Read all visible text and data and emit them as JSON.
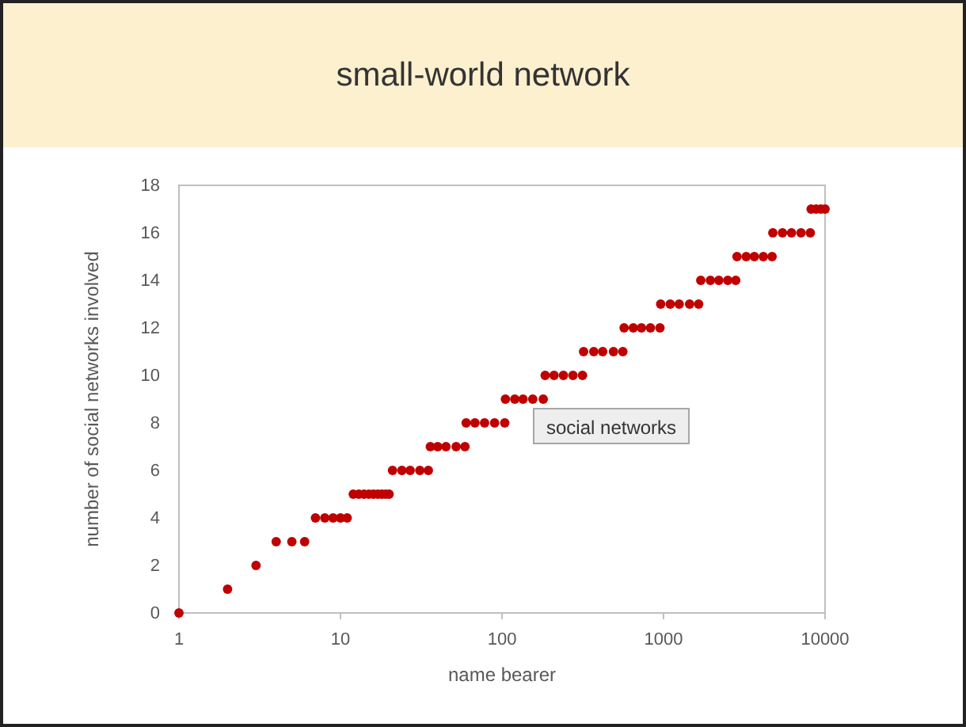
{
  "chart_data": {
    "type": "scatter",
    "title": "small-world network",
    "xlabel": "name bearer",
    "ylabel": "number of social networks involved",
    "log": "x",
    "xlim": [
      1,
      10000
    ],
    "xticks": [
      1,
      10,
      100,
      1000,
      10000
    ],
    "ylim": [
      0,
      18
    ],
    "yticks": [
      0,
      2,
      4,
      6,
      8,
      10,
      12,
      14,
      16,
      18
    ],
    "grid": false,
    "legend": "right",
    "marker": "circle",
    "x": [
      1,
      2,
      3,
      4,
      5,
      6,
      7,
      8,
      9,
      10,
      11,
      12,
      13,
      14,
      15,
      16,
      17,
      18,
      19,
      20,
      21,
      24,
      27,
      31,
      35,
      36,
      40,
      45,
      52,
      59,
      60,
      68,
      78,
      90,
      104,
      105,
      120,
      135,
      155,
      180,
      185,
      210,
      240,
      275,
      315,
      320,
      370,
      420,
      490,
      560,
      570,
      650,
      730,
      830,
      950,
      960,
      1100,
      1250,
      1450,
      1650,
      1700,
      1950,
      2200,
      2500,
      2800,
      2850,
      3250,
      3650,
      4150,
      4700,
      4750,
      5450,
      6200,
      7100,
      8100,
      8200,
      8800,
      9400,
      10000
    ],
    "series": [
      {
        "name": "social networks",
        "color": "#c00000",
        "values": [
          0,
          1,
          2,
          3,
          3,
          3,
          4,
          4,
          4,
          4,
          4,
          5,
          5,
          5,
          5,
          5,
          5,
          5,
          5,
          5,
          6,
          6,
          6,
          6,
          6,
          7,
          7,
          7,
          7,
          7,
          8,
          8,
          8,
          8,
          8,
          9,
          9,
          9,
          9,
          9,
          10,
          10,
          10,
          10,
          10,
          11,
          11,
          11,
          11,
          11,
          12,
          12,
          12,
          12,
          12,
          13,
          13,
          13,
          13,
          13,
          14,
          14,
          14,
          14,
          14,
          15,
          15,
          15,
          15,
          15,
          16,
          16,
          16,
          16,
          16,
          17,
          17,
          17,
          17
        ]
      }
    ]
  }
}
